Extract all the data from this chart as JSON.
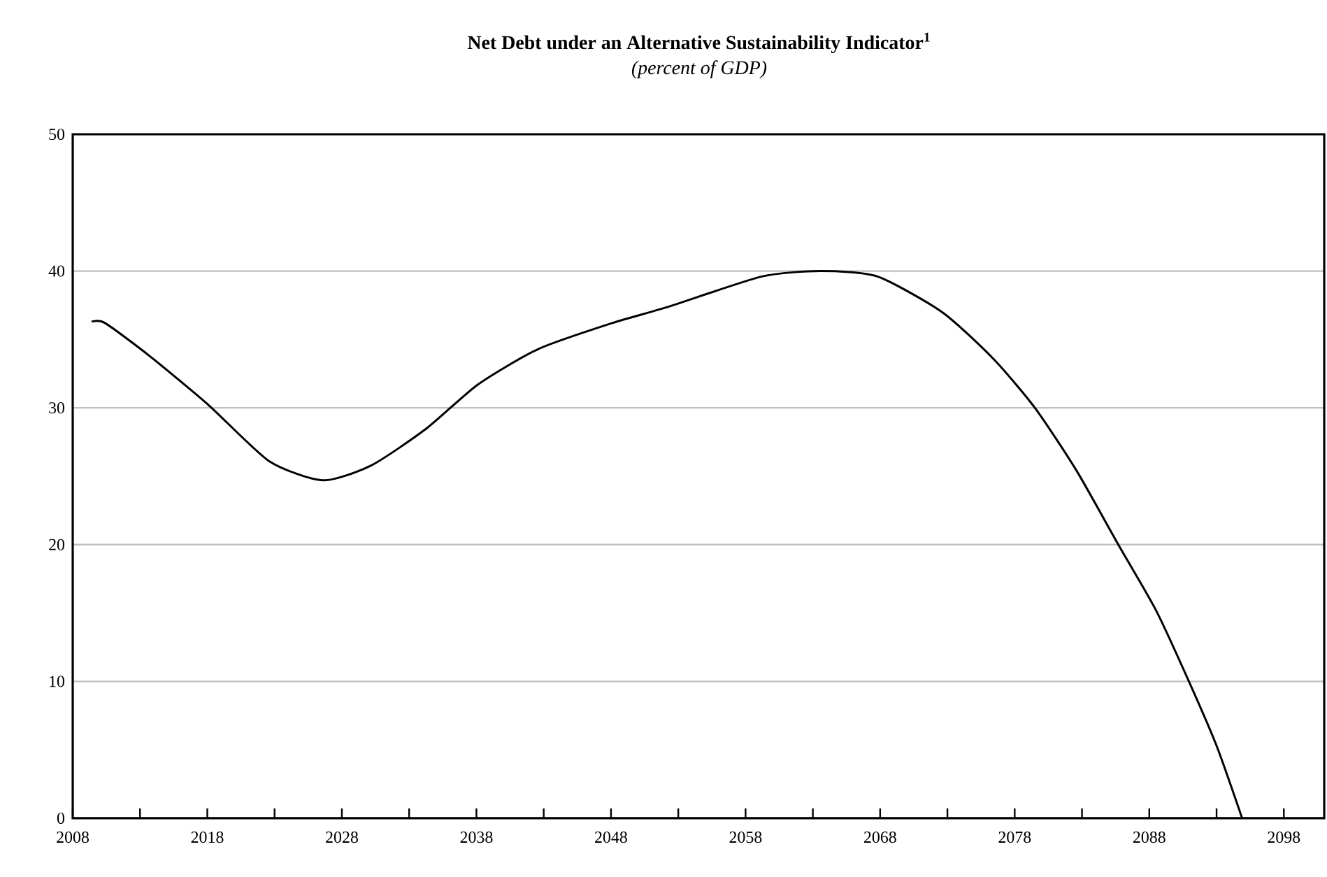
{
  "chart_data": {
    "type": "line",
    "title": "Net Debt under an Alternative Sustainability Indicator$^{1}$",
    "subtitle": "(percent of GDP)",
    "series": [
      {
        "color": "#000000",
        "x": [
          2009.4,
          2010.4,
          2013.7,
          2018.1,
          2022.6,
          2026.6,
          2030.2,
          2034.3,
          2038.1,
          2042.6,
          2048.1,
          2052.3,
          2059.2,
          2063.6,
          2067.8,
          2072.6,
          2076.4,
          2079.5,
          2082.6,
          2085.7,
          2088.5,
          2090.9,
          2093.0,
          2094.9
        ],
        "values": [
          36.3,
          36.2,
          33.8,
          30.2,
          26.1,
          24.7,
          25.8,
          28.5,
          31.7,
          34.3,
          36.2,
          37.4,
          39.6,
          40.0,
          39.6,
          37.0,
          33.6,
          30.0,
          25.4,
          20.0,
          15.2,
          10.1,
          5.3,
          0
        ]
      }
    ],
    "xlim": [
      2008,
      2101
    ],
    "xticks": [
      2008,
      {
        "value": 2013,
        "label": null
      },
      2018,
      {
        "value": 2023,
        "label": null
      },
      2028,
      {
        "value": 2033,
        "label": null
      },
      2038,
      {
        "value": 2043,
        "label": null
      },
      2048,
      {
        "value": 2053,
        "label": null
      },
      2058,
      {
        "value": 2063,
        "label": null
      },
      2068,
      {
        "value": 2073,
        "label": null
      },
      2078,
      {
        "value": 2083,
        "label": null
      },
      2088,
      {
        "value": 2093,
        "label": null
      },
      2098
    ],
    "ylim": [
      0,
      50
    ],
    "yticks": [
      0,
      10,
      20,
      30,
      40,
      50
    ],
    "grid": "y",
    "legend": false,
    "marker": "none",
    "line_style": "solid"
  }
}
